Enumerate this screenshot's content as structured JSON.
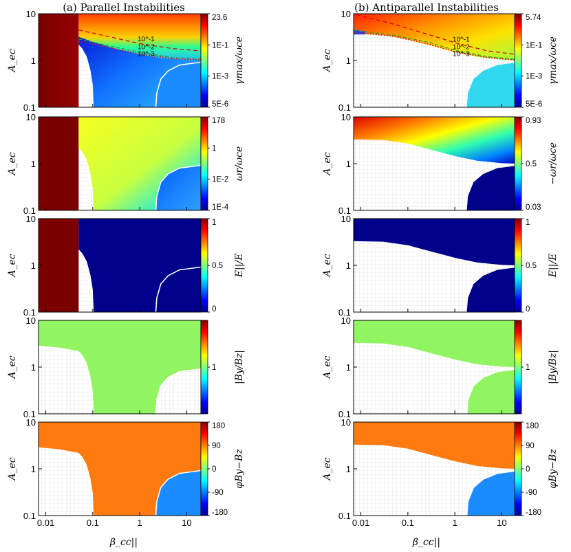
{
  "figure": {
    "titles": [
      "(a) Parallel Instabilities",
      "(b) Antiparallel Instabilities"
    ],
    "xlabel": "β_cc||",
    "ylabel": "A_ec"
  },
  "chart_data": [
    {
      "type": "heatmap",
      "panel": "a1",
      "xscale": "log",
      "yscale": "log",
      "xlim": [
        0.007,
        20
      ],
      "ylim": [
        0.1,
        10
      ],
      "xticks": [
        "0.01",
        "0.1",
        "1",
        "10"
      ],
      "yticks": [
        "0.1",
        "1",
        "10"
      ],
      "ylabel": "A_ec",
      "cbar_label": "γmax/ωce",
      "cbar_ticks": [
        "23.6",
        "1E-1",
        "1E-3",
        "5E-6"
      ],
      "contour_labels": [
        "10^-1",
        "10^-2",
        "10^-3"
      ]
    },
    {
      "type": "heatmap",
      "panel": "a2",
      "xscale": "log",
      "yscale": "log",
      "xlim": [
        0.007,
        20
      ],
      "ylim": [
        0.1,
        10
      ],
      "xticks": [
        "0.01",
        "0.1",
        "1",
        "10"
      ],
      "yticks": [
        "0.1",
        "1",
        "10"
      ],
      "ylabel": "A_ec",
      "cbar_label": "ωr/ωce",
      "cbar_ticks": [
        "178",
        "1",
        "1E-2",
        "1E-4"
      ]
    },
    {
      "type": "heatmap",
      "panel": "a3",
      "xscale": "log",
      "yscale": "log",
      "xlim": [
        0.007,
        20
      ],
      "ylim": [
        0.1,
        10
      ],
      "xticks": [
        "0.01",
        "0.1",
        "1",
        "10"
      ],
      "yticks": [
        "0.1",
        "1",
        "10"
      ],
      "ylabel": "A_ec",
      "cbar_label": "E||/E",
      "cbar_ticks": [
        "1",
        "0.5",
        "0"
      ]
    },
    {
      "type": "heatmap",
      "panel": "a4",
      "xscale": "log",
      "yscale": "log",
      "xlim": [
        0.007,
        20
      ],
      "ylim": [
        0.1,
        10
      ],
      "xticks": [
        "0.01",
        "0.1",
        "1",
        "10"
      ],
      "yticks": [
        "0.1",
        "1",
        "10"
      ],
      "ylabel": "A_ec",
      "cbar_label": "|By/Bz|",
      "cbar_ticks": [
        "1"
      ]
    },
    {
      "type": "heatmap",
      "panel": "a5",
      "xscale": "log",
      "yscale": "log",
      "xlim": [
        0.007,
        20
      ],
      "ylim": [
        0.1,
        10
      ],
      "xticks": [
        "0.01",
        "0.1",
        "1",
        "10"
      ],
      "yticks": [
        "0.1",
        "1",
        "10"
      ],
      "ylabel": "A_ec",
      "xlabel": "β_cc||",
      "cbar_label": "φBy−Bz",
      "cbar_ticks": [
        "180",
        "90",
        "0",
        "-90",
        "-180"
      ]
    },
    {
      "type": "heatmap",
      "panel": "b1",
      "xscale": "log",
      "yscale": "log",
      "xlim": [
        0.007,
        20
      ],
      "ylim": [
        0.1,
        10
      ],
      "xticks": [
        "0.01",
        "0.1",
        "1",
        "10"
      ],
      "yticks": [
        "0.1",
        "1",
        "10"
      ],
      "ylabel": "A_ec",
      "cbar_label": "γmax/ωce",
      "cbar_ticks": [
        "5.74",
        "1E-1",
        "1E-3",
        "5E-6"
      ],
      "contour_labels": [
        "10^-1",
        "10^-2",
        "10^-3"
      ]
    },
    {
      "type": "heatmap",
      "panel": "b2",
      "xscale": "log",
      "yscale": "log",
      "xlim": [
        0.007,
        20
      ],
      "ylim": [
        0.1,
        10
      ],
      "xticks": [
        "0.01",
        "0.1",
        "1",
        "10"
      ],
      "yticks": [
        "0.1",
        "1",
        "10"
      ],
      "ylabel": "A_ec",
      "cbar_label": "−ωr/ωce",
      "cbar_ticks": [
        "0.93",
        "0.5",
        "0.03"
      ]
    },
    {
      "type": "heatmap",
      "panel": "b3",
      "xscale": "log",
      "yscale": "log",
      "xlim": [
        0.007,
        20
      ],
      "ylim": [
        0.1,
        10
      ],
      "xticks": [
        "0.01",
        "0.1",
        "1",
        "10"
      ],
      "yticks": [
        "0.1",
        "1",
        "10"
      ],
      "ylabel": "A_ec",
      "cbar_label": "E||/E",
      "cbar_ticks": [
        "1",
        "0.5",
        "0"
      ]
    },
    {
      "type": "heatmap",
      "panel": "b4",
      "xscale": "log",
      "yscale": "log",
      "xlim": [
        0.007,
        20
      ],
      "ylim": [
        0.1,
        10
      ],
      "xticks": [
        "0.01",
        "0.1",
        "1",
        "10"
      ],
      "yticks": [
        "0.1",
        "1",
        "10"
      ],
      "ylabel": "A_ec",
      "cbar_label": "|By/Bz|",
      "cbar_ticks": [
        "1"
      ]
    },
    {
      "type": "heatmap",
      "panel": "b5",
      "xscale": "log",
      "yscale": "log",
      "xlim": [
        0.007,
        20
      ],
      "ylim": [
        0.1,
        10
      ],
      "xticks": [
        "0.01",
        "0.1",
        "1",
        "10"
      ],
      "yticks": [
        "0.1",
        "1",
        "10"
      ],
      "ylabel": "A_ec",
      "xlabel": "β_cc||",
      "cbar_label": "φBy−Bz",
      "cbar_ticks": [
        "180",
        "90",
        "0",
        "-90",
        "-180"
      ]
    }
  ],
  "colors": {
    "dark_red": "#7a0000",
    "navy": "#00008a",
    "green": "#90f560",
    "orange": "#ff7a10",
    "light_blue": "#1a8cff",
    "cyan": "#30d8f0"
  }
}
